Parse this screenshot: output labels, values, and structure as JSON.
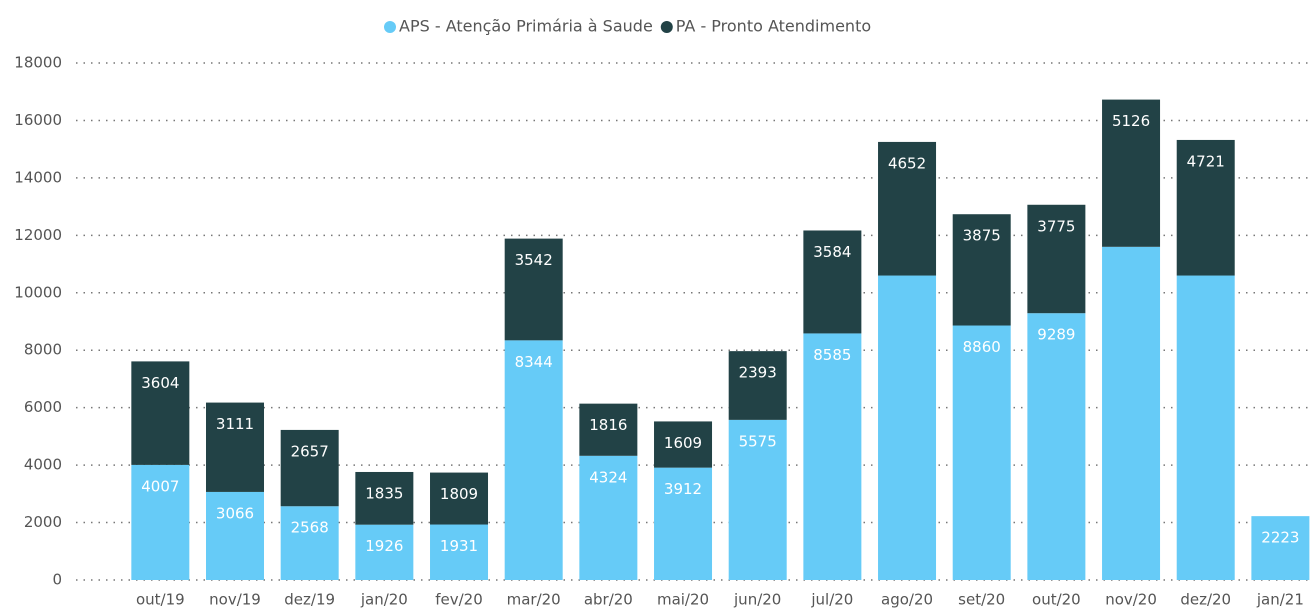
{
  "chart_data": {
    "type": "stacked_bar",
    "categories": [
      "out/19",
      "nov/19",
      "dez/19",
      "jan/20",
      "fev/20",
      "mar/20",
      "abr/20",
      "mai/20",
      "jun/20",
      "jul/20",
      "ago/20",
      "set/20",
      "out/20",
      "nov/20",
      "dez/20",
      "jan/21"
    ],
    "series": [
      {
        "name": "APS - Atenção Primária à Saude",
        "color": "#66cbf7",
        "values": [
          4007,
          3066,
          2568,
          1926,
          1931,
          8344,
          4324,
          3912,
          5575,
          8585,
          10600,
          8860,
          9289,
          11600,
          10600,
          2223
        ],
        "value_labels": [
          4007,
          3066,
          2568,
          1926,
          1931,
          8344,
          4324,
          3912,
          5575,
          8585,
          null,
          8860,
          9289,
          null,
          null,
          2223
        ]
      },
      {
        "name": "PA - Pronto Atendimento",
        "color": "#224246",
        "values": [
          3604,
          3111,
          2657,
          1835,
          1809,
          3542,
          1816,
          1609,
          2393,
          3584,
          4652,
          3875,
          3775,
          5126,
          4721,
          null
        ],
        "value_labels": [
          3604,
          3111,
          2657,
          1835,
          1809,
          3542,
          1816,
          1609,
          2393,
          3584,
          4652,
          3875,
          3775,
          5126,
          4721,
          null
        ]
      }
    ],
    "ylim": [
      0,
      18000
    ],
    "yticks": [
      0,
      2000,
      4000,
      6000,
      8000,
      10000,
      12000,
      14000,
      16000,
      18000
    ],
    "grid": true,
    "legend": "top"
  }
}
